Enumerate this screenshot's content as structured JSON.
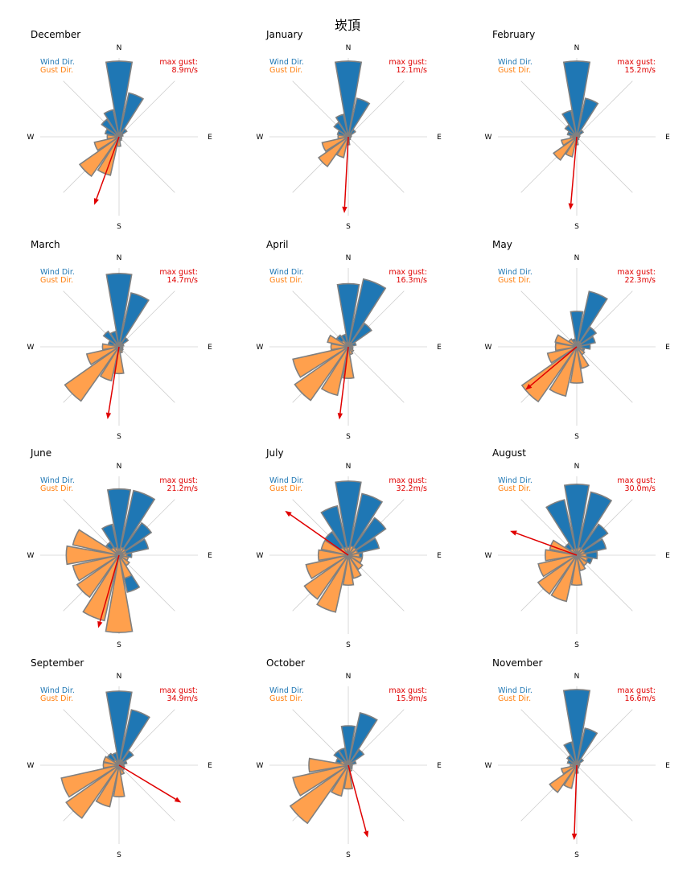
{
  "page_title": "崁頂",
  "labels": {
    "wind": "Wind Dir.",
    "gust": "Gust Dir.",
    "max_gust": "max gust:",
    "compass": {
      "n": "N",
      "e": "E",
      "s": "S",
      "w": "W"
    }
  },
  "colors": {
    "wind": "#1f77b4",
    "gust": "#ffa04d",
    "edge": "#808080",
    "max_gust": "#e00000",
    "grid": "#d0d0d0"
  },
  "chart_data": {
    "type": "polar-bar",
    "directions": [
      "N",
      "NNE",
      "NE",
      "ENE",
      "E",
      "ESE",
      "SE",
      "SSE",
      "S",
      "SSW",
      "SW",
      "WSW",
      "W",
      "WNW",
      "NW",
      "NNW"
    ],
    "direction_units": "16-point compass sectors",
    "radial_units": "relative frequency (normalized, max = 1)",
    "months": [
      {
        "name": "December",
        "max_gust": "8.9m/s",
        "gust_bearing": 200,
        "gust_len": 0.92,
        "wind": [
          0.96,
          0.57,
          0.12,
          0.05,
          0.03,
          0.03,
          0.04,
          0.05,
          0.05,
          0.06,
          0.06,
          0.08,
          0.1,
          0.18,
          0.27,
          0.35
        ],
        "gust": [
          0.05,
          0.06,
          0.05,
          0.03,
          0.03,
          0.03,
          0.04,
          0.05,
          0.12,
          0.5,
          0.61,
          0.32,
          0.15,
          0.06,
          0.05,
          0.04
        ]
      },
      {
        "name": "January",
        "max_gust": "12.1m/s",
        "gust_bearing": 183,
        "gust_len": 0.97,
        "wind": [
          0.96,
          0.5,
          0.11,
          0.04,
          0.03,
          0.03,
          0.03,
          0.04,
          0.05,
          0.05,
          0.06,
          0.07,
          0.09,
          0.14,
          0.22,
          0.29
        ],
        "gust": [
          0.05,
          0.05,
          0.04,
          0.03,
          0.03,
          0.03,
          0.03,
          0.04,
          0.1,
          0.27,
          0.46,
          0.34,
          0.13,
          0.06,
          0.05,
          0.04
        ]
      },
      {
        "name": "February",
        "max_gust": "15.2m/s",
        "gust_bearing": 185,
        "gust_len": 0.93,
        "wind": [
          0.96,
          0.5,
          0.1,
          0.04,
          0.03,
          0.03,
          0.03,
          0.04,
          0.05,
          0.05,
          0.05,
          0.06,
          0.08,
          0.12,
          0.18,
          0.34
        ],
        "gust": [
          0.04,
          0.05,
          0.04,
          0.03,
          0.03,
          0.03,
          0.03,
          0.04,
          0.1,
          0.26,
          0.36,
          0.2,
          0.08,
          0.05,
          0.04,
          0.04
        ]
      },
      {
        "name": "March",
        "max_gust": "14.7m/s",
        "gust_bearing": 189,
        "gust_len": 0.93,
        "wind": [
          0.93,
          0.7,
          0.14,
          0.06,
          0.04,
          0.04,
          0.05,
          0.05,
          0.06,
          0.06,
          0.07,
          0.08,
          0.1,
          0.14,
          0.24,
          0.2
        ],
        "gust": [
          0.05,
          0.06,
          0.05,
          0.04,
          0.04,
          0.05,
          0.06,
          0.08,
          0.34,
          0.44,
          0.84,
          0.42,
          0.21,
          0.07,
          0.05,
          0.05
        ]
      },
      {
        "name": "April",
        "max_gust": "16.3m/s",
        "gust_bearing": 187,
        "gust_len": 0.93,
        "wind": [
          0.8,
          0.88,
          0.36,
          0.1,
          0.05,
          0.05,
          0.05,
          0.06,
          0.06,
          0.06,
          0.07,
          0.08,
          0.1,
          0.14,
          0.18,
          0.16
        ],
        "gust": [
          0.05,
          0.06,
          0.06,
          0.05,
          0.05,
          0.06,
          0.08,
          0.1,
          0.4,
          0.63,
          0.83,
          0.72,
          0.22,
          0.27,
          0.1,
          0.06
        ]
      },
      {
        "name": "May",
        "max_gust": "22.3m/s",
        "gust_bearing": 230,
        "gust_len": 0.85,
        "wind": [
          0.45,
          0.72,
          0.3,
          0.24,
          0.17,
          0.1,
          0.06,
          0.06,
          0.06,
          0.06,
          0.08,
          0.1,
          0.13,
          0.13,
          0.12,
          0.1
        ],
        "gust": [
          0.06,
          0.07,
          0.07,
          0.06,
          0.06,
          0.08,
          0.12,
          0.28,
          0.46,
          0.64,
          0.85,
          0.38,
          0.27,
          0.28,
          0.12,
          0.07
        ]
      },
      {
        "name": "June",
        "max_gust": "21.2m/s",
        "gust_bearing": 196,
        "gust_len": 0.96,
        "wind": [
          0.84,
          0.84,
          0.5,
          0.38,
          0.16,
          0.1,
          0.08,
          0.48,
          0.12,
          0.08,
          0.1,
          0.12,
          0.16,
          0.14,
          0.2,
          0.4
        ],
        "gust": [
          0.08,
          0.1,
          0.1,
          0.09,
          0.1,
          0.12,
          0.16,
          0.3,
          0.98,
          0.85,
          0.65,
          0.6,
          0.67,
          0.6,
          0.12,
          0.1
        ]
      },
      {
        "name": "July",
        "max_gust": "32.2m/s",
        "gust_bearing": 305,
        "gust_len": 0.98,
        "wind": [
          0.94,
          0.8,
          0.58,
          0.4,
          0.18,
          0.12,
          0.12,
          0.1,
          0.1,
          0.1,
          0.12,
          0.14,
          0.14,
          0.16,
          0.36,
          0.64
        ],
        "gust": [
          0.1,
          0.12,
          0.12,
          0.12,
          0.14,
          0.18,
          0.22,
          0.3,
          0.38,
          0.74,
          0.68,
          0.55,
          0.38,
          0.35,
          0.12,
          0.1
        ]
      },
      {
        "name": "August",
        "max_gust": "30.0m/s",
        "gust_bearing": 290,
        "gust_len": 0.9,
        "wind": [
          0.9,
          0.82,
          0.48,
          0.38,
          0.26,
          0.2,
          0.12,
          0.1,
          0.1,
          0.1,
          0.12,
          0.12,
          0.12,
          0.12,
          0.18,
          0.72
        ],
        "gust": [
          0.08,
          0.1,
          0.1,
          0.1,
          0.12,
          0.14,
          0.16,
          0.2,
          0.38,
          0.6,
          0.6,
          0.5,
          0.4,
          0.35,
          0.1,
          0.08
        ]
      },
      {
        "name": "September",
        "max_gust": "34.9m/s",
        "gust_bearing": 121,
        "gust_len": 0.92,
        "wind": [
          0.94,
          0.72,
          0.22,
          0.1,
          0.06,
          0.06,
          0.06,
          0.08,
          0.08,
          0.08,
          0.1,
          0.12,
          0.14,
          0.2,
          0.18,
          0.16
        ],
        "gust": [
          0.06,
          0.07,
          0.06,
          0.06,
          0.06,
          0.07,
          0.08,
          0.12,
          0.4,
          0.54,
          0.82,
          0.75,
          0.2,
          0.2,
          0.08,
          0.06
        ]
      },
      {
        "name": "October",
        "max_gust": "15.9m/s",
        "gust_bearing": 165,
        "gust_len": 0.95,
        "wind": [
          0.5,
          0.68,
          0.24,
          0.1,
          0.05,
          0.04,
          0.04,
          0.05,
          0.06,
          0.06,
          0.07,
          0.09,
          0.12,
          0.16,
          0.22,
          0.22
        ],
        "gust": [
          0.05,
          0.06,
          0.05,
          0.04,
          0.04,
          0.05,
          0.06,
          0.08,
          0.3,
          0.4,
          0.9,
          0.72,
          0.5,
          0.1,
          0.06,
          0.05
        ]
      },
      {
        "name": "November",
        "max_gust": "16.6m/s",
        "gust_bearing": 182,
        "gust_len": 0.95,
        "wind": [
          0.96,
          0.48,
          0.1,
          0.04,
          0.03,
          0.03,
          0.03,
          0.04,
          0.05,
          0.05,
          0.05,
          0.06,
          0.08,
          0.12,
          0.15,
          0.3
        ],
        "gust": [
          0.04,
          0.05,
          0.04,
          0.03,
          0.03,
          0.03,
          0.03,
          0.04,
          0.1,
          0.3,
          0.42,
          0.2,
          0.08,
          0.05,
          0.04,
          0.04
        ]
      }
    ]
  }
}
